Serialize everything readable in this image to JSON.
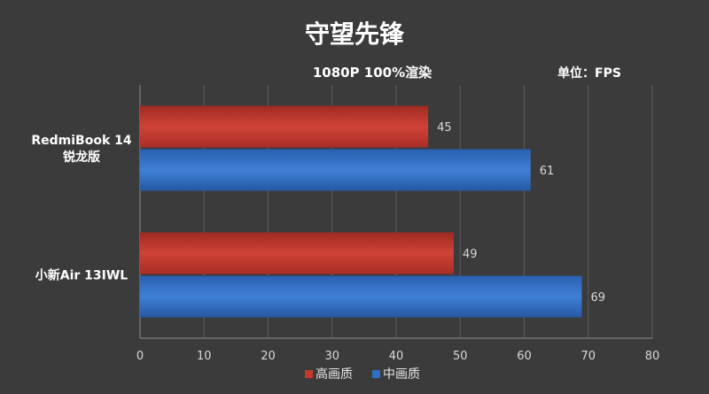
{
  "chart_data": {
    "type": "bar",
    "orientation": "horizontal",
    "title": "守望先锋",
    "subtitle": "1080P 100%渲染",
    "unit_label": "单位：FPS",
    "categories": [
      [
        "RedmiBook 14",
        "锐龙版"
      ],
      [
        "小新Air 13IWL"
      ]
    ],
    "series": [
      {
        "name": "高画质",
        "color": "#c0392b",
        "values": [
          45,
          49
        ]
      },
      {
        "name": "中画质",
        "color": "#2e6fc4",
        "values": [
          61,
          69
        ]
      }
    ],
    "xlim": [
      0,
      80
    ],
    "xticks": [
      0,
      10,
      20,
      30,
      40,
      50,
      60,
      70,
      80
    ],
    "grid": true,
    "legend_position": "bottom"
  }
}
